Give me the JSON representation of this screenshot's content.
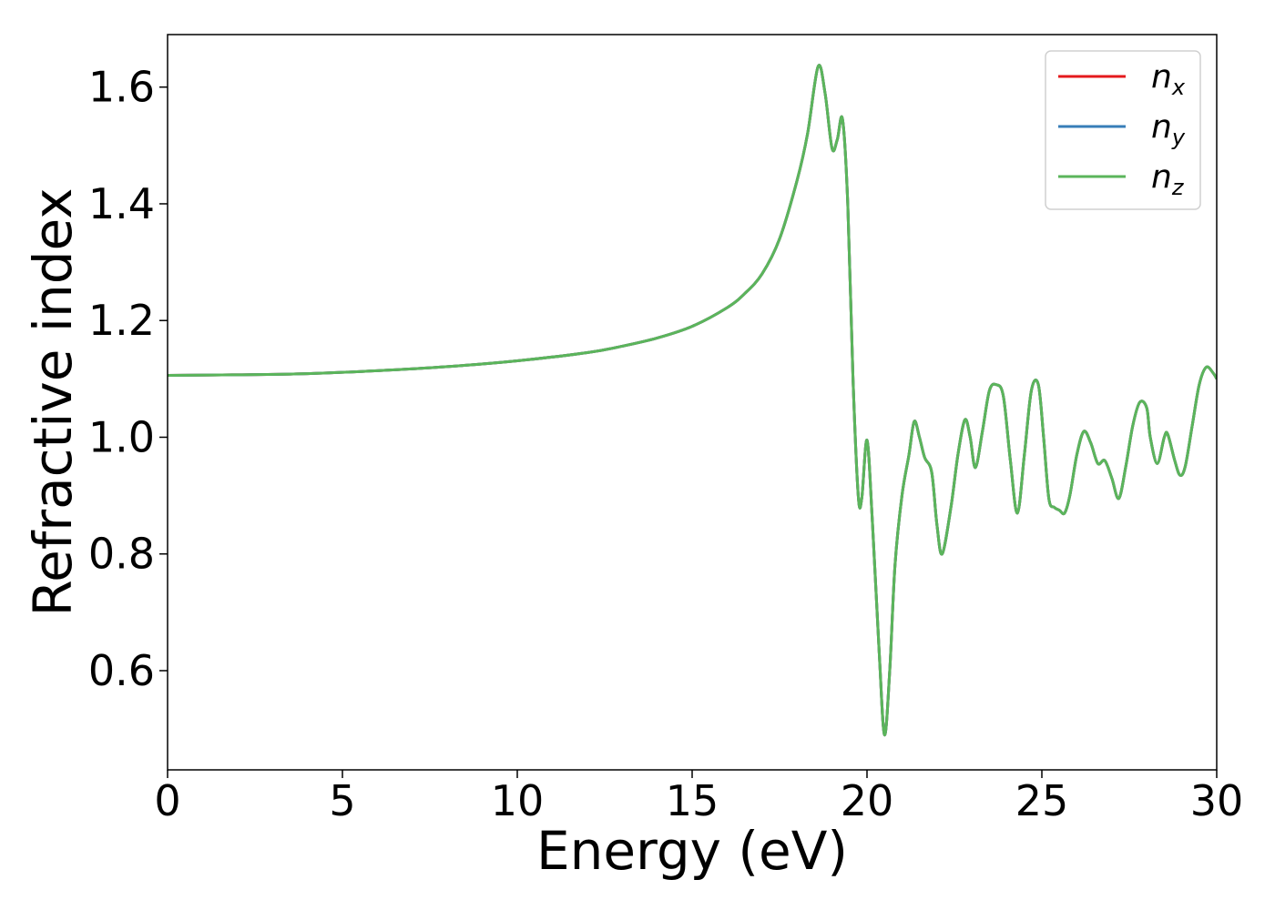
{
  "chart_data": {
    "type": "line",
    "xlabel": "Energy (eV)",
    "ylabel": "Refractive index",
    "xlim": [
      0,
      30
    ],
    "ylim": [
      0.43,
      1.69
    ],
    "xticks": [
      "0",
      "5",
      "10",
      "15",
      "20",
      "25",
      "30"
    ],
    "yticks": [
      "0.6",
      "0.8",
      "1.0",
      "1.2",
      "1.4",
      "1.6"
    ],
    "grid": false,
    "legend_position": "top-right",
    "series": [
      {
        "name": "n_x",
        "label_base": "n",
        "label_sub": "x",
        "color": "#e41a1c",
        "x": [
          0,
          2,
          4,
          6,
          8,
          10,
          12,
          13,
          14,
          15,
          16,
          16.5,
          17,
          17.5,
          18,
          18.3,
          18.6,
          18.8,
          19.0,
          19.15,
          19.3,
          19.45,
          19.6,
          19.75,
          19.85,
          20.0,
          20.15,
          20.35,
          20.5,
          20.65,
          20.8,
          21.0,
          21.2,
          21.35,
          21.5,
          21.65,
          21.85,
          22.0,
          22.15,
          22.4,
          22.6,
          22.8,
          22.95,
          23.1,
          23.3,
          23.5,
          23.7,
          23.9,
          24.1,
          24.3,
          24.5,
          24.7,
          24.9,
          25.05,
          25.2,
          25.35,
          25.5,
          25.65,
          25.8,
          26.0,
          26.2,
          26.4,
          26.6,
          26.8,
          27.0,
          27.2,
          27.4,
          27.6,
          27.8,
          28.0,
          28.1,
          28.3,
          28.5,
          28.6,
          28.8,
          28.95,
          29.1,
          29.3,
          29.5,
          29.7,
          29.9,
          30.0
        ],
        "y": [
          1.106,
          1.107,
          1.109,
          1.114,
          1.121,
          1.131,
          1.145,
          1.156,
          1.17,
          1.19,
          1.222,
          1.246,
          1.28,
          1.34,
          1.44,
          1.52,
          1.635,
          1.59,
          1.495,
          1.51,
          1.545,
          1.4,
          1.1,
          0.9,
          0.895,
          0.995,
          0.86,
          0.63,
          0.49,
          0.6,
          0.78,
          0.9,
          0.97,
          1.027,
          1.0,
          0.965,
          0.94,
          0.85,
          0.8,
          0.88,
          0.97,
          1.03,
          1.0,
          0.948,
          1.01,
          1.08,
          1.09,
          1.07,
          0.96,
          0.87,
          0.97,
          1.08,
          1.09,
          1.0,
          0.895,
          0.88,
          0.875,
          0.87,
          0.9,
          0.97,
          1.01,
          0.99,
          0.955,
          0.96,
          0.93,
          0.895,
          0.95,
          1.02,
          1.06,
          1.05,
          1.0,
          0.955,
          1.0,
          1.005,
          0.96,
          0.935,
          0.95,
          1.02,
          1.09,
          1.12,
          1.11,
          1.1
        ]
      },
      {
        "name": "n_y",
        "label_base": "n",
        "label_sub": "y",
        "color": "#377eb8",
        "same_as": "n_x"
      },
      {
        "name": "n_z",
        "label_base": "n",
        "label_sub": "z",
        "color": "#5bb55b",
        "same_as": "n_x"
      }
    ]
  }
}
